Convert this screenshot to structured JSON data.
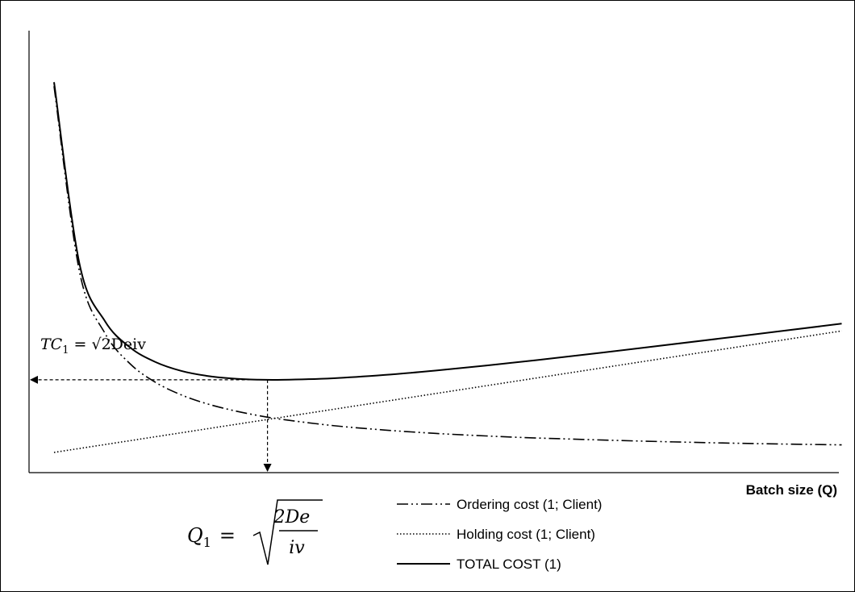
{
  "chart_data": {
    "type": "line",
    "title": "",
    "xlabel": "Batch size (Q)",
    "ylabel": "",
    "grid": false,
    "legend_placement": "bottom-center",
    "series": [
      {
        "name": "Ordering cost (1; Client)",
        "style": "dash-dot-dot",
        "color": "#000000",
        "x": [
          1,
          2,
          3,
          4,
          5,
          6,
          7,
          8,
          9,
          10,
          12,
          14,
          16,
          18,
          20,
          24,
          28,
          32
        ],
        "y": [
          30.6,
          15.3,
          10.2,
          7.65,
          6.12,
          5.1,
          4.37,
          3.83,
          3.4,
          3.06,
          2.55,
          2.19,
          1.91,
          1.7,
          1.53,
          1.28,
          1.09,
          0.96
        ]
      },
      {
        "name": "Holding cost (1; Client)",
        "style": "dotted",
        "color": "#000000",
        "x": [
          1,
          32
        ],
        "y": [
          0.34,
          10.38
        ]
      },
      {
        "name": "TOTAL COST (1)",
        "style": "solid",
        "color": "#000000",
        "x": [
          1,
          2,
          3,
          4,
          5,
          6,
          7,
          8,
          9,
          10,
          12,
          14,
          16,
          18,
          20,
          24,
          28,
          32
        ],
        "y": [
          30.94,
          15.94,
          11.2,
          9.0,
          7.8,
          7.08,
          6.67,
          6.45,
          6.35,
          6.34,
          6.47,
          6.74,
          7.1,
          7.52,
          7.97,
          8.94,
          9.95,
          10.98
        ]
      }
    ],
    "optimum": {
      "Q1": 9.4,
      "TC1": 6.34
    }
  },
  "annotations": {
    "tc_label": {
      "main": "TC",
      "sub": "1",
      "rest": "= √2Deiv"
    },
    "q_label": {
      "main": "Q",
      "sub": "1",
      "num": "2De",
      "den": "iv"
    }
  }
}
